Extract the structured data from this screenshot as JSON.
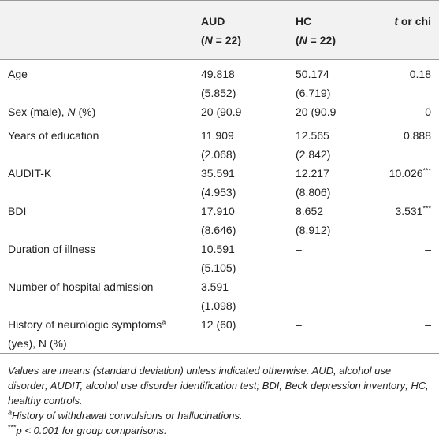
{
  "table": {
    "header": {
      "aud": [
        "AUD",
        "(",
        "N",
        " = 22)"
      ],
      "hc": [
        "HC",
        "(",
        "N",
        " = 22)"
      ],
      "stat": [
        "t",
        " or chi"
      ]
    },
    "rows": [
      {
        "label": [
          "Age"
        ],
        "aud": [
          "49.818",
          "(5.852)"
        ],
        "hc": [
          "50.174",
          "(6.719)"
        ],
        "stat": [
          "0.18"
        ]
      },
      {
        "label": [
          "Sex (male), ",
          "N",
          " (%)"
        ],
        "aud": [
          "20 (90.9"
        ],
        "hc": [
          "20 (90.9"
        ],
        "stat": [
          "0"
        ]
      },
      {
        "label": [
          "Years of education"
        ],
        "aud": [
          "11.909",
          "(2.068)"
        ],
        "hc": [
          "12.565",
          "(2.842)"
        ],
        "stat": [
          "0.888"
        ]
      },
      {
        "label": [
          "AUDIT-K"
        ],
        "aud": [
          "35.591",
          "(4.953)"
        ],
        "hc": [
          "12.217",
          "(8.806)"
        ],
        "stat": [
          "10.026",
          "***"
        ]
      },
      {
        "label": [
          "BDI"
        ],
        "aud": [
          "17.910",
          "(8.646)"
        ],
        "hc": [
          "8.652",
          "(8.912)"
        ],
        "stat": [
          "3.531",
          "***"
        ]
      },
      {
        "label": [
          "Duration of illness"
        ],
        "aud": [
          "10.591",
          "(5.105)"
        ],
        "hc": [
          "–"
        ],
        "stat": [
          "–"
        ]
      },
      {
        "label": [
          "Number of hospital admission"
        ],
        "aud": [
          "3.591",
          "(1.098)"
        ],
        "hc": [
          "–"
        ],
        "stat": [
          "–"
        ]
      },
      {
        "label": [
          "History of neurologic symptoms",
          "a",
          "(yes), N (%)"
        ],
        "aud": [
          "12 (60)"
        ],
        "hc": [
          "–"
        ],
        "stat": [
          "–"
        ]
      }
    ]
  },
  "notes": {
    "main": "Values are means (standard deviation) unless indicated otherwise. AUD, alcohol use disorder; AUDIT, alcohol use disorder identification test; BDI, Beck depression inventory; HC, healthy controls.",
    "a": [
      "a",
      "History of withdrawal convulsions or hallucinations."
    ],
    "p": [
      "***",
      "p",
      " < 0.001 for group comparisons."
    ]
  }
}
